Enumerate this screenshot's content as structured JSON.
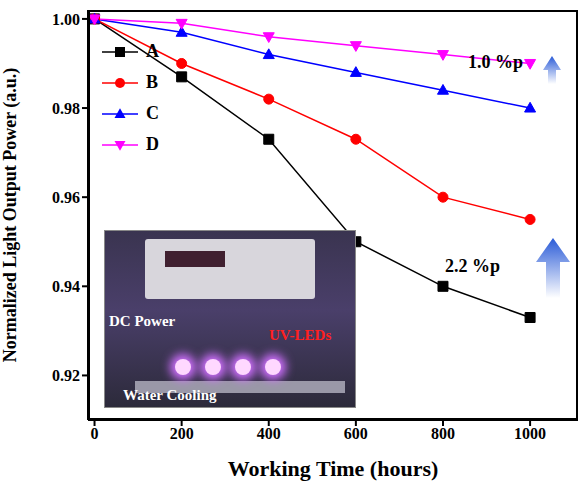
{
  "chart_data": {
    "type": "line",
    "x_label": "Working Time (hours)",
    "y_label": "Normalized Light Output Power (a.u.)",
    "x": [
      0,
      200,
      400,
      600,
      800,
      1000
    ],
    "series": [
      {
        "name": "A",
        "color": "#000000",
        "marker": "square",
        "values": [
          1.0,
          0.987,
          0.973,
          0.95,
          0.94,
          0.933
        ]
      },
      {
        "name": "B",
        "color": "#ff0000",
        "marker": "circle",
        "values": [
          1.0,
          0.99,
          0.982,
          0.973,
          0.96,
          0.955
        ]
      },
      {
        "name": "C",
        "color": "#0000ff",
        "marker": "triangle-up",
        "values": [
          1.0,
          0.997,
          0.992,
          0.988,
          0.984,
          0.98
        ]
      },
      {
        "name": "D",
        "color": "#ff00ff",
        "marker": "triangle-down",
        "values": [
          1.0,
          0.999,
          0.996,
          0.994,
          0.992,
          0.99
        ]
      }
    ],
    "xlim": [
      -15,
      1110
    ],
    "xticks": [
      0,
      200,
      400,
      600,
      800,
      1000
    ],
    "ylim": [
      0.91,
      1.002
    ],
    "yticks": [
      0.92,
      0.94,
      0.96,
      0.98,
      {
        "value": 1,
        "label": "1.00"
      }
    ],
    "grid": false,
    "legend": "upper left",
    "annotations": [
      {
        "text": "1.0 %p"
      },
      {
        "text": "2.2 %p"
      }
    ],
    "inset": {
      "labels": [
        "DC Power",
        "UV-LEDs",
        "Water Cooling"
      ]
    }
  }
}
